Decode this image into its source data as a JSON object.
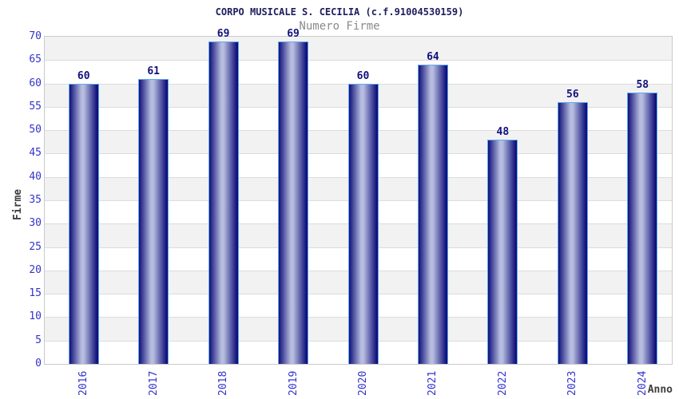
{
  "chart_data": {
    "type": "bar",
    "title": "CORPO MUSICALE S. CECILIA (c.f.91004530159)",
    "subtitle": "Numero Firme",
    "categories": [
      "2016",
      "2017",
      "2018",
      "2019",
      "2020",
      "2021",
      "2022",
      "2023",
      "2024"
    ],
    "values": [
      60,
      61,
      69,
      69,
      60,
      64,
      48,
      56,
      58
    ],
    "xlabel": "Anno",
    "ylabel": "Firme",
    "ylim": [
      0,
      70
    ],
    "ytick_step": 5,
    "grid": true,
    "legend_position": "none",
    "band_fill": "alternating horizontal 5-unit bands, gray band at top",
    "colors": {
      "bar_dark": "#10107a",
      "bar_light": "#b7bddf",
      "bar_border": "#5ea9f2",
      "value_label": "#11117c",
      "tick_label": "#3333cc",
      "title": "#1d1d5e",
      "subtitle": "#8a8a8a",
      "axis_title": "#3d3d3d",
      "band_gray": "#f2f2f2",
      "band_white": "#ffffff",
      "gridline": "#dcdcdc",
      "plot_border": "#c9c9c9"
    }
  }
}
